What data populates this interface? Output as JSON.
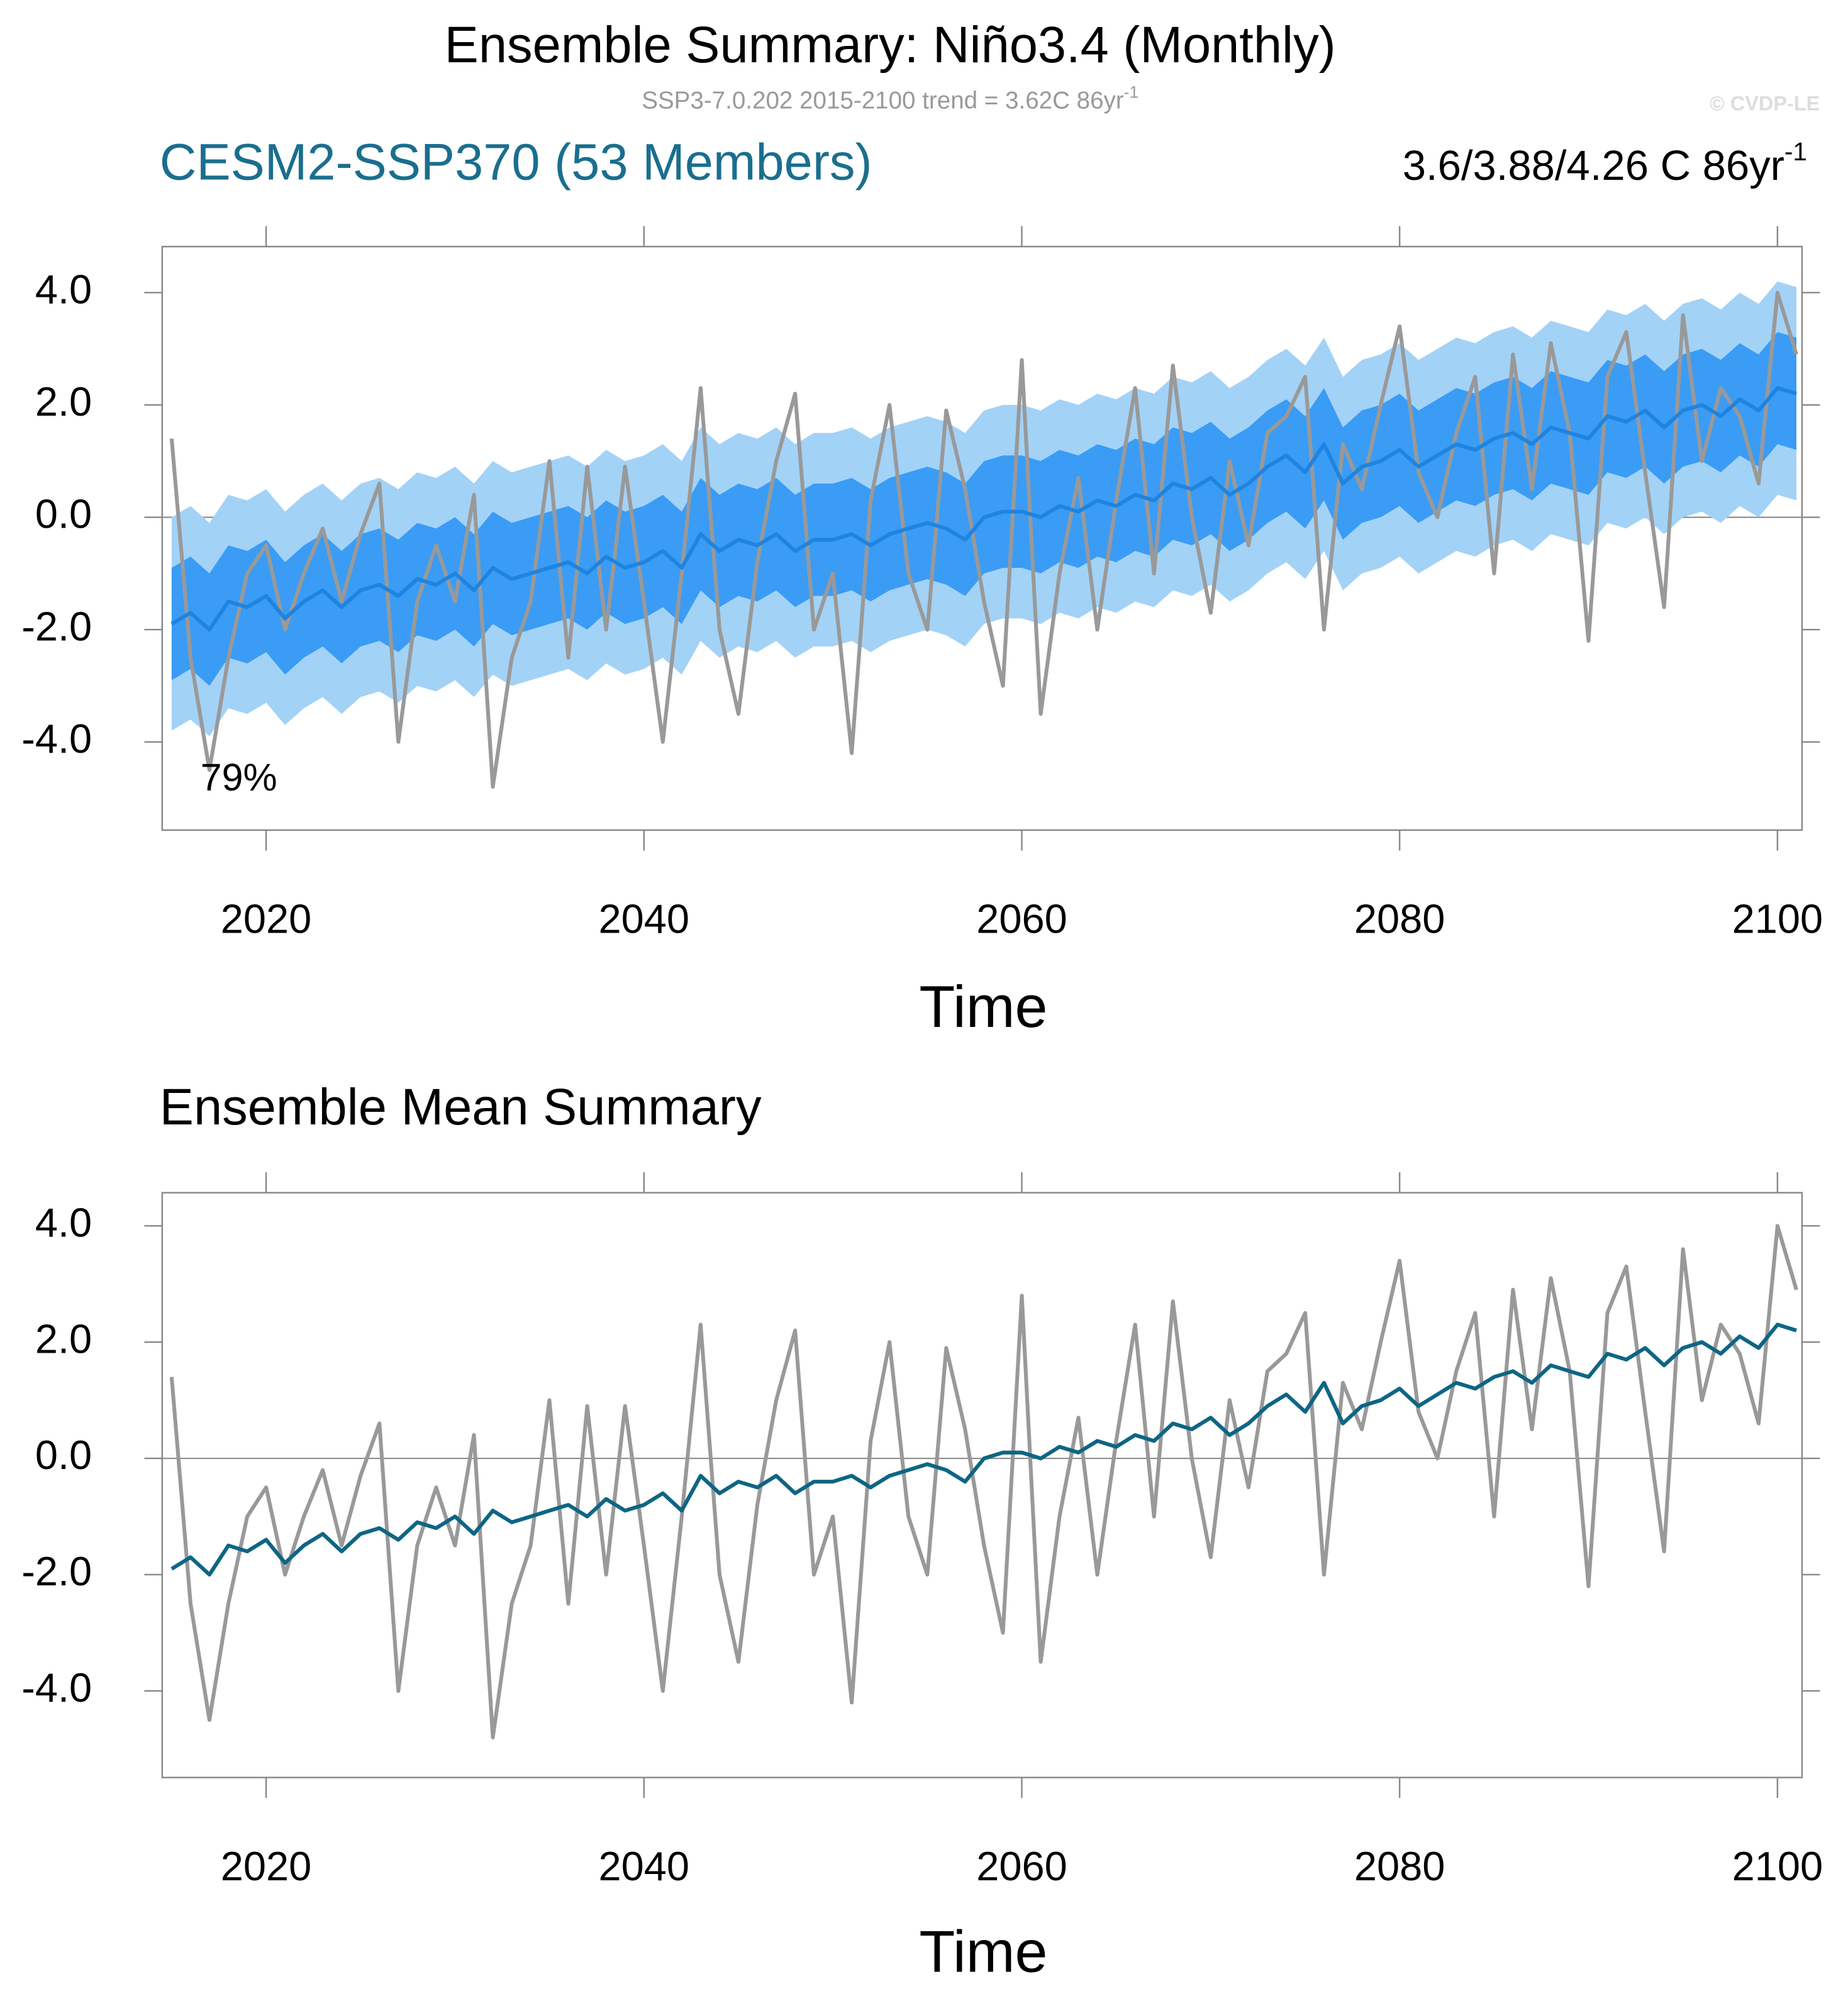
{
  "chart_data": [
    {
      "type": "band-line",
      "title": "Ensemble Summary: Niño3.4 (Monthly)",
      "subtitle": "SSP3-7.0.202 2015-2100 trend = 3.62C 86yr",
      "subtitle_superscript": "-1",
      "copyright": "© CVDP-LE",
      "left_title": "CESM2-SSP370 (53 Members)",
      "left_title_color": "#1a6e8e",
      "right_title": "3.6/3.88/4.26 C 86yr",
      "right_title_superscript": "-1",
      "annotation": "79%",
      "x_label": "Time",
      "xlim": [
        2014.5,
        2101.3
      ],
      "ylim": [
        -5.57,
        4.82
      ],
      "xticks": [
        2020,
        2040,
        2060,
        2080,
        2100
      ],
      "yticks": [
        {
          "value": 4,
          "label": "4.0"
        },
        {
          "value": 2,
          "label": "2.0"
        },
        {
          "value": 0,
          "label": "0.0"
        },
        {
          "value": -2,
          "label": "-2.0"
        },
        {
          "value": -4,
          "label": "-4.0"
        }
      ],
      "zero_line": true,
      "x": [
        2015,
        2016,
        2017,
        2018,
        2019,
        2020,
        2021,
        2022,
        2023,
        2024,
        2025,
        2026,
        2027,
        2028,
        2029,
        2030,
        2031,
        2032,
        2033,
        2034,
        2035,
        2036,
        2037,
        2038,
        2039,
        2040,
        2041,
        2042,
        2043,
        2044,
        2045,
        2046,
        2047,
        2048,
        2049,
        2050,
        2051,
        2052,
        2053,
        2054,
        2055,
        2056,
        2057,
        2058,
        2059,
        2060,
        2061,
        2062,
        2063,
        2064,
        2065,
        2066,
        2067,
        2068,
        2069,
        2070,
        2071,
        2072,
        2073,
        2074,
        2075,
        2076,
        2077,
        2078,
        2079,
        2080,
        2081,
        2082,
        2083,
        2084,
        2085,
        2086,
        2087,
        2088,
        2089,
        2090,
        2091,
        2092,
        2093,
        2094,
        2095,
        2096,
        2097,
        2098,
        2099,
        2100,
        2101
      ],
      "bands": [
        {
          "color": "#a3d2f7",
          "upper": [
            0.0,
            0.2,
            -0.1,
            0.4,
            0.3,
            0.5,
            0.1,
            0.4,
            0.6,
            0.3,
            0.6,
            0.7,
            0.5,
            0.8,
            0.7,
            0.9,
            0.6,
            1.0,
            0.8,
            0.9,
            1.0,
            1.1,
            0.9,
            1.2,
            1.0,
            1.1,
            1.3,
            1.0,
            1.6,
            1.3,
            1.5,
            1.4,
            1.6,
            1.3,
            1.5,
            1.5,
            1.6,
            1.4,
            1.6,
            1.7,
            1.8,
            1.7,
            1.5,
            1.9,
            2.0,
            2.0,
            1.9,
            2.1,
            2.0,
            2.2,
            2.1,
            2.3,
            2.2,
            2.5,
            2.4,
            2.6,
            2.3,
            2.5,
            2.8,
            3.0,
            2.7,
            3.2,
            2.5,
            2.8,
            2.9,
            3.1,
            2.8,
            3.0,
            3.2,
            3.1,
            3.3,
            3.4,
            3.2,
            3.5,
            3.4,
            3.3,
            3.7,
            3.6,
            3.8,
            3.5,
            3.8,
            3.9,
            3.7,
            4.0,
            3.8,
            4.2,
            4.1
          ],
          "lower": [
            -3.8,
            -3.6,
            -3.9,
            -3.4,
            -3.5,
            -3.3,
            -3.7,
            -3.4,
            -3.2,
            -3.5,
            -3.2,
            -3.1,
            -3.3,
            -3.0,
            -3.1,
            -2.9,
            -3.2,
            -2.8,
            -3.0,
            -2.9,
            -2.8,
            -2.7,
            -2.9,
            -2.6,
            -2.8,
            -2.7,
            -2.5,
            -2.8,
            -2.2,
            -2.5,
            -2.3,
            -2.4,
            -2.2,
            -2.5,
            -2.3,
            -2.3,
            -2.2,
            -2.4,
            -2.2,
            -2.1,
            -2.0,
            -2.1,
            -2.3,
            -1.9,
            -1.8,
            -1.8,
            -1.9,
            -1.7,
            -1.8,
            -1.6,
            -1.7,
            -1.5,
            -1.6,
            -1.3,
            -1.4,
            -1.2,
            -1.5,
            -1.3,
            -1.0,
            -0.8,
            -1.1,
            -0.6,
            -1.3,
            -1.0,
            -0.9,
            -0.7,
            -1.0,
            -0.8,
            -0.6,
            -0.7,
            -0.5,
            -0.4,
            -0.6,
            -0.3,
            -0.4,
            -0.5,
            -0.1,
            -0.2,
            0.0,
            -0.3,
            0.0,
            0.1,
            -0.1,
            0.2,
            0.0,
            0.4,
            0.3
          ]
        },
        {
          "color": "#3a9cf5",
          "upper": [
            -0.9,
            -0.7,
            -1.0,
            -0.5,
            -0.6,
            -0.4,
            -0.8,
            -0.5,
            -0.3,
            -0.6,
            -0.3,
            -0.2,
            -0.4,
            -0.1,
            -0.2,
            0.0,
            -0.3,
            0.1,
            -0.1,
            0.0,
            0.1,
            0.2,
            0.0,
            0.3,
            0.1,
            0.2,
            0.4,
            0.1,
            0.7,
            0.4,
            0.6,
            0.5,
            0.7,
            0.4,
            0.6,
            0.6,
            0.7,
            0.5,
            0.7,
            0.8,
            0.9,
            0.8,
            0.6,
            1.0,
            1.1,
            1.1,
            1.0,
            1.2,
            1.1,
            1.3,
            1.2,
            1.4,
            1.3,
            1.6,
            1.5,
            1.7,
            1.4,
            1.6,
            1.9,
            2.1,
            1.8,
            2.3,
            1.6,
            1.9,
            2.0,
            2.2,
            1.9,
            2.1,
            2.3,
            2.2,
            2.4,
            2.5,
            2.3,
            2.6,
            2.5,
            2.4,
            2.8,
            2.7,
            2.9,
            2.6,
            2.9,
            3.0,
            2.8,
            3.1,
            2.9,
            3.3,
            3.2
          ],
          "lower": [
            -2.9,
            -2.7,
            -3.0,
            -2.5,
            -2.6,
            -2.4,
            -2.8,
            -2.5,
            -2.3,
            -2.6,
            -2.3,
            -2.2,
            -2.4,
            -2.1,
            -2.2,
            -2.0,
            -2.3,
            -1.9,
            -2.1,
            -2.0,
            -1.9,
            -1.8,
            -2.0,
            -1.7,
            -1.9,
            -1.8,
            -1.6,
            -1.9,
            -1.3,
            -1.6,
            -1.4,
            -1.5,
            -1.3,
            -1.6,
            -1.4,
            -1.4,
            -1.3,
            -1.5,
            -1.3,
            -1.2,
            -1.1,
            -1.2,
            -1.4,
            -1.0,
            -0.9,
            -0.9,
            -1.0,
            -0.8,
            -0.9,
            -0.7,
            -0.8,
            -0.6,
            -0.7,
            -0.4,
            -0.5,
            -0.3,
            -0.6,
            -0.4,
            -0.1,
            0.1,
            -0.2,
            0.3,
            -0.4,
            -0.1,
            0.0,
            0.2,
            -0.1,
            0.1,
            0.3,
            0.2,
            0.4,
            0.5,
            0.3,
            0.6,
            0.5,
            0.4,
            0.8,
            0.7,
            0.9,
            0.6,
            0.9,
            1.0,
            0.8,
            1.1,
            0.9,
            1.3,
            1.2
          ]
        }
      ],
      "series": [
        {
          "color": "#999999",
          "values": [
            1.4,
            -2.5,
            -4.5,
            -2.5,
            -1.0,
            -0.5,
            -2.0,
            -1.0,
            -0.2,
            -1.5,
            -0.3,
            0.6,
            -4.0,
            -1.5,
            -0.5,
            -1.5,
            0.4,
            -4.8,
            -2.5,
            -1.5,
            1.0,
            -2.5,
            0.9,
            -2.0,
            0.9,
            -1.5,
            -4.0,
            -1.0,
            2.3,
            -2.0,
            -3.5,
            -0.8,
            1.0,
            2.2,
            -2.0,
            -1.0,
            -4.2,
            0.3,
            2.0,
            -1.0,
            -2.0,
            1.9,
            0.5,
            -1.5,
            -3.0,
            2.8,
            -3.5,
            -1.0,
            0.7,
            -2.0,
            0.3,
            2.3,
            -1.0,
            2.7,
            0.0,
            -1.7,
            1.0,
            -0.5,
            1.5,
            1.8,
            2.5,
            -2.0,
            1.3,
            0.5,
            2.0,
            3.4,
            0.8,
            0.0,
            1.5,
            2.5,
            -1.0,
            2.9,
            0.5,
            3.1,
            1.5,
            -2.2,
            2.5,
            3.3,
            0.8,
            -1.6,
            3.6,
            1.0,
            2.3,
            1.8,
            0.6,
            4.0,
            2.9
          ]
        },
        {
          "color": "#1e84e0",
          "values": [
            -1.9,
            -1.7,
            -2.0,
            -1.5,
            -1.6,
            -1.4,
            -1.8,
            -1.5,
            -1.3,
            -1.6,
            -1.3,
            -1.2,
            -1.4,
            -1.1,
            -1.2,
            -1.0,
            -1.3,
            -0.9,
            -1.1,
            -1.0,
            -0.9,
            -0.8,
            -1.0,
            -0.7,
            -0.9,
            -0.8,
            -0.6,
            -0.9,
            -0.3,
            -0.6,
            -0.4,
            -0.5,
            -0.3,
            -0.6,
            -0.4,
            -0.4,
            -0.3,
            -0.5,
            -0.3,
            -0.2,
            -0.1,
            -0.2,
            -0.4,
            0.0,
            0.1,
            0.1,
            0.0,
            0.2,
            0.1,
            0.3,
            0.2,
            0.4,
            0.3,
            0.6,
            0.5,
            0.7,
            0.4,
            0.6,
            0.9,
            1.1,
            0.8,
            1.3,
            0.6,
            0.9,
            1.0,
            1.2,
            0.9,
            1.1,
            1.3,
            1.2,
            1.4,
            1.5,
            1.3,
            1.6,
            1.5,
            1.4,
            1.8,
            1.7,
            1.9,
            1.6,
            1.9,
            2.0,
            1.8,
            2.1,
            1.9,
            2.3,
            2.2
          ]
        }
      ]
    },
    {
      "type": "line",
      "left_title": "Ensemble Mean Summary",
      "left_title_color": "#000000",
      "x_label": "Time",
      "xlim": [
        2014.5,
        2101.3
      ],
      "ylim": [
        -5.49,
        4.57
      ],
      "xticks": [
        2020,
        2040,
        2060,
        2080,
        2100
      ],
      "yticks": [
        {
          "value": 4,
          "label": "4.0"
        },
        {
          "value": 2,
          "label": "2.0"
        },
        {
          "value": 0,
          "label": "0.0"
        },
        {
          "value": -2,
          "label": "-2.0"
        },
        {
          "value": -4,
          "label": "-4.0"
        }
      ],
      "zero_line": true,
      "x": [
        2015,
        2016,
        2017,
        2018,
        2019,
        2020,
        2021,
        2022,
        2023,
        2024,
        2025,
        2026,
        2027,
        2028,
        2029,
        2030,
        2031,
        2032,
        2033,
        2034,
        2035,
        2036,
        2037,
        2038,
        2039,
        2040,
        2041,
        2042,
        2043,
        2044,
        2045,
        2046,
        2047,
        2048,
        2049,
        2050,
        2051,
        2052,
        2053,
        2054,
        2055,
        2056,
        2057,
        2058,
        2059,
        2060,
        2061,
        2062,
        2063,
        2064,
        2065,
        2066,
        2067,
        2068,
        2069,
        2070,
        2071,
        2072,
        2073,
        2074,
        2075,
        2076,
        2077,
        2078,
        2079,
        2080,
        2081,
        2082,
        2083,
        2084,
        2085,
        2086,
        2087,
        2088,
        2089,
        2090,
        2091,
        2092,
        2093,
        2094,
        2095,
        2096,
        2097,
        2098,
        2099,
        2100,
        2101
      ],
      "series": [
        {
          "color": "#999999",
          "values": [
            1.4,
            -2.5,
            -4.5,
            -2.5,
            -1.0,
            -0.5,
            -2.0,
            -1.0,
            -0.2,
            -1.5,
            -0.3,
            0.6,
            -4.0,
            -1.5,
            -0.5,
            -1.5,
            0.4,
            -4.8,
            -2.5,
            -1.5,
            1.0,
            -2.5,
            0.9,
            -2.0,
            0.9,
            -1.5,
            -4.0,
            -1.0,
            2.3,
            -2.0,
            -3.5,
            -0.8,
            1.0,
            2.2,
            -2.0,
            -1.0,
            -4.2,
            0.3,
            2.0,
            -1.0,
            -2.0,
            1.9,
            0.5,
            -1.5,
            -3.0,
            2.8,
            -3.5,
            -1.0,
            0.7,
            -2.0,
            0.3,
            2.3,
            -1.0,
            2.7,
            0.0,
            -1.7,
            1.0,
            -0.5,
            1.5,
            1.8,
            2.5,
            -2.0,
            1.3,
            0.5,
            2.0,
            3.4,
            0.8,
            0.0,
            1.5,
            2.5,
            -1.0,
            2.9,
            0.5,
            3.1,
            1.5,
            -2.2,
            2.5,
            3.3,
            0.8,
            -1.6,
            3.6,
            1.0,
            2.3,
            1.8,
            0.6,
            4.0,
            2.9
          ]
        },
        {
          "color": "#0e6584",
          "values": [
            -1.9,
            -1.7,
            -2.0,
            -1.5,
            -1.6,
            -1.4,
            -1.8,
            -1.5,
            -1.3,
            -1.6,
            -1.3,
            -1.2,
            -1.4,
            -1.1,
            -1.2,
            -1.0,
            -1.3,
            -0.9,
            -1.1,
            -1.0,
            -0.9,
            -0.8,
            -1.0,
            -0.7,
            -0.9,
            -0.8,
            -0.6,
            -0.9,
            -0.3,
            -0.6,
            -0.4,
            -0.5,
            -0.3,
            -0.6,
            -0.4,
            -0.4,
            -0.3,
            -0.5,
            -0.3,
            -0.2,
            -0.1,
            -0.2,
            -0.4,
            0.0,
            0.1,
            0.1,
            0.0,
            0.2,
            0.1,
            0.3,
            0.2,
            0.4,
            0.3,
            0.6,
            0.5,
            0.7,
            0.4,
            0.6,
            0.9,
            1.1,
            0.8,
            1.3,
            0.6,
            0.9,
            1.0,
            1.2,
            0.9,
            1.1,
            1.3,
            1.2,
            1.4,
            1.5,
            1.3,
            1.6,
            1.5,
            1.4,
            1.8,
            1.7,
            1.9,
            1.6,
            1.9,
            2.0,
            1.8,
            2.1,
            1.9,
            2.3,
            2.2
          ]
        }
      ]
    }
  ]
}
